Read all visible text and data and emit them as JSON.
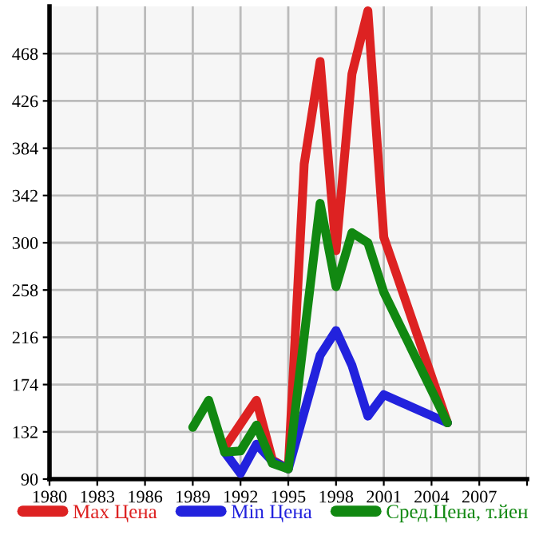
{
  "chart_data": {
    "type": "line",
    "xlim": [
      1980,
      2010
    ],
    "ylim": [
      90,
      510
    ],
    "xticks": [
      1980,
      1983,
      1986,
      1989,
      1992,
      1995,
      1998,
      2001,
      2004,
      2007,
      {
        "value": 2010,
        "label": null
      }
    ],
    "yticks": [
      90,
      132,
      174,
      216,
      258,
      300,
      342,
      384,
      426,
      468
    ],
    "grid": true,
    "legend": "bottom",
    "marker": "none",
    "line_style": "solid",
    "series": [
      {
        "name": "Max Цена",
        "color": "#dd2222",
        "x": [
          1991,
          1993,
          1994,
          1995,
          1996,
          1997,
          1998,
          1999,
          2000,
          2001,
          2005
        ],
        "values": [
          118,
          160,
          107,
          99,
          370,
          461,
          293,
          450,
          506,
          305,
          140
        ]
      },
      {
        "name": "Min Цена",
        "color": "#2222dd",
        "x": [
          1991,
          1992,
          1993,
          1994,
          1995,
          1997,
          1998,
          1999,
          2000,
          2001,
          2005
        ],
        "values": [
          114,
          95,
          121,
          106,
          99,
          200,
          222,
          191,
          146,
          165,
          140
        ]
      },
      {
        "name": "Сред.Цена, т.йен",
        "color": "#118811",
        "x": [
          1989,
          1990,
          1991,
          1992,
          1993,
          1994,
          1995,
          1997,
          1998,
          1999,
          2000,
          2001,
          2005
        ],
        "values": [
          136,
          160,
          114,
          115,
          138,
          104,
          99,
          335,
          261,
          309,
          300,
          256,
          140
        ]
      }
    ]
  }
}
